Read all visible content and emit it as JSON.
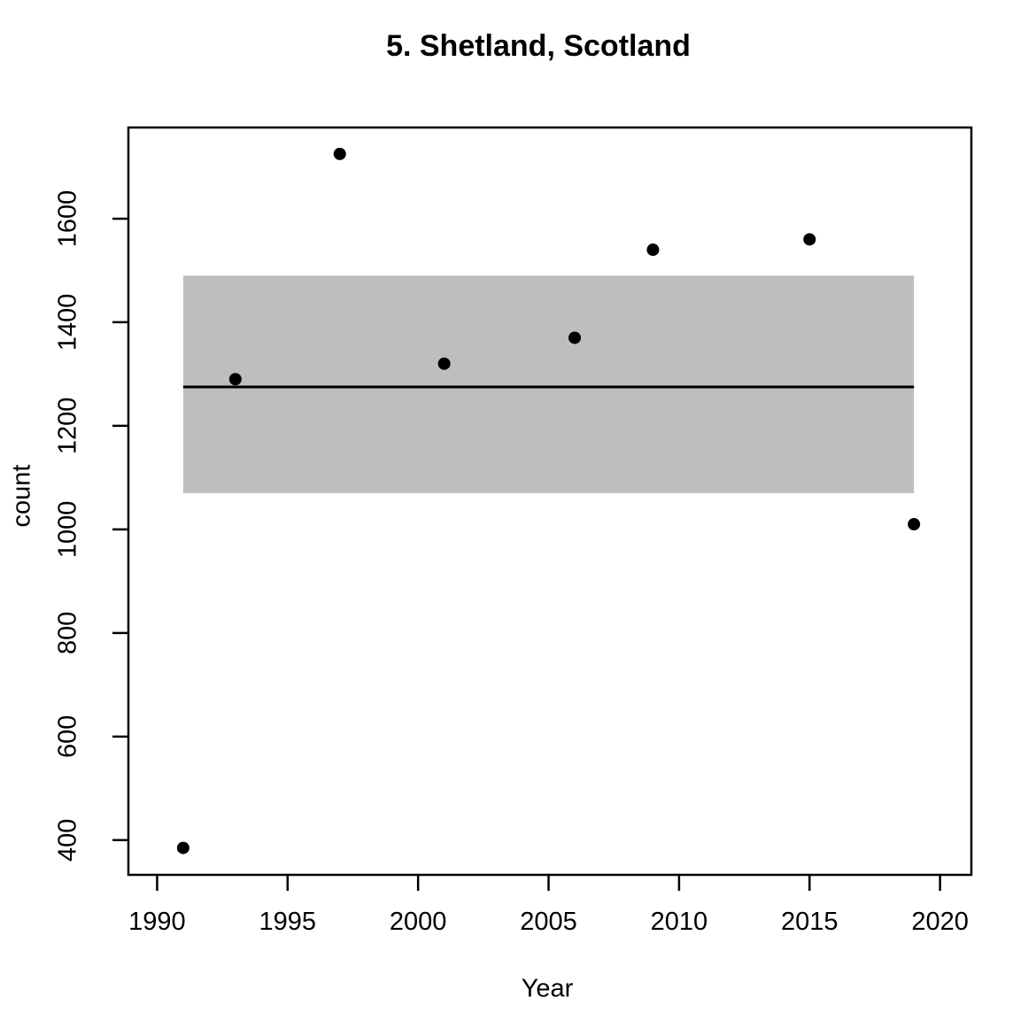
{
  "chart_data": {
    "type": "scatter",
    "title": "5. Shetland, Scotland",
    "xlabel": "Year",
    "ylabel": "count",
    "x": [
      1991,
      1993,
      1997,
      2001,
      2006,
      2009,
      2015,
      2019
    ],
    "y": [
      385,
      1290,
      1725,
      1320,
      1370,
      1540,
      1560,
      1010
    ],
    "x_ticks": [
      1990,
      1995,
      2000,
      2005,
      2010,
      2015,
      2020
    ],
    "y_ticks": [
      400,
      600,
      800,
      1000,
      1200,
      1400,
      1600
    ],
    "xlim": [
      1988.9,
      2021.2
    ],
    "ylim": [
      333,
      1776
    ],
    "grid": false,
    "legend": "none",
    "band": {
      "x_start": 1991,
      "x_end": 2019,
      "y_low": 1070,
      "y_high": 1490,
      "color": "#bebebe"
    },
    "mean_line": {
      "x_start": 1991,
      "x_end": 2019,
      "y": 1275,
      "color": "#000000"
    },
    "colors": {
      "points": "#000000",
      "axis": "#000000",
      "text": "#000000",
      "background": "#ffffff"
    }
  }
}
